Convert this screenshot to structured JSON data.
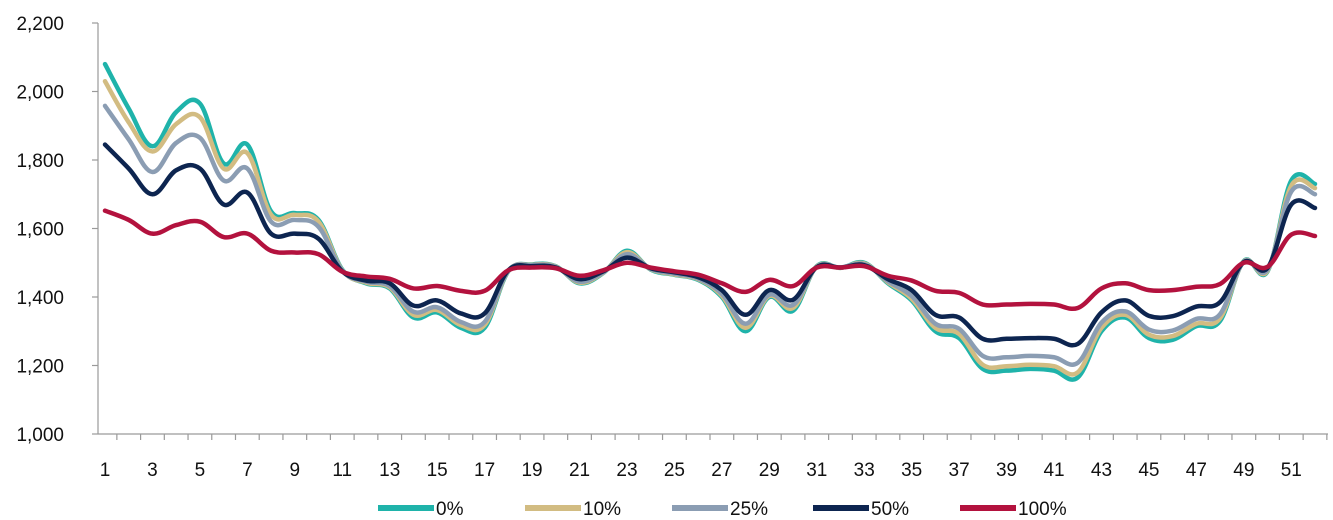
{
  "chart_data": {
    "type": "line",
    "x": [
      1,
      2,
      3,
      4,
      5,
      6,
      7,
      8,
      9,
      10,
      11,
      12,
      13,
      14,
      15,
      16,
      17,
      18,
      19,
      20,
      21,
      22,
      23,
      24,
      25,
      26,
      27,
      28,
      29,
      30,
      31,
      32,
      33,
      34,
      35,
      36,
      37,
      38,
      39,
      40,
      41,
      42,
      43,
      44,
      45,
      46,
      47,
      48,
      49,
      50,
      51,
      52
    ],
    "x_tick_labels": [
      "1",
      "3",
      "5",
      "7",
      "9",
      "11",
      "13",
      "15",
      "17",
      "19",
      "21",
      "23",
      "25",
      "27",
      "29",
      "31",
      "33",
      "35",
      "37",
      "39",
      "41",
      "43",
      "45",
      "47",
      "49",
      "51"
    ],
    "y_tick_labels": [
      "1,000",
      "1,200",
      "1,400",
      "1,600",
      "1,800",
      "2,000",
      "2,200"
    ],
    "ylim": [
      1000,
      2200
    ],
    "grid": false,
    "legend_position": "bottom",
    "series": [
      {
        "name": "0%",
        "color": "#1fb3aa",
        "values": [
          2080,
          1950,
          1840,
          1940,
          1965,
          1790,
          1845,
          1650,
          1645,
          1625,
          1480,
          1440,
          1425,
          1340,
          1355,
          1310,
          1310,
          1475,
          1495,
          1490,
          1440,
          1470,
          1535,
          1480,
          1465,
          1450,
          1400,
          1300,
          1400,
          1360,
          1490,
          1485,
          1500,
          1440,
          1390,
          1300,
          1280,
          1190,
          1185,
          1190,
          1185,
          1165,
          1300,
          1340,
          1280,
          1275,
          1315,
          1330,
          1505,
          1475,
          1740,
          1730
        ]
      },
      {
        "name": "10%",
        "color": "#d2bc82",
        "values": [
          2030,
          1910,
          1825,
          1905,
          1925,
          1775,
          1820,
          1640,
          1640,
          1620,
          1478,
          1442,
          1428,
          1348,
          1362,
          1318,
          1318,
          1476,
          1494,
          1489,
          1442,
          1471,
          1531,
          1481,
          1466,
          1452,
          1404,
          1310,
          1403,
          1368,
          1489,
          1485,
          1498,
          1443,
          1395,
          1310,
          1292,
          1202,
          1198,
          1202,
          1198,
          1180,
          1310,
          1348,
          1290,
          1286,
          1322,
          1338,
          1504,
          1477,
          1725,
          1718
        ]
      },
      {
        "name": "25%",
        "color": "#8b9db3",
        "values": [
          1958,
          1860,
          1765,
          1850,
          1865,
          1740,
          1775,
          1620,
          1625,
          1605,
          1477,
          1445,
          1432,
          1357,
          1370,
          1327,
          1327,
          1477,
          1493,
          1488,
          1445,
          1472,
          1525,
          1482,
          1468,
          1454,
          1409,
          1322,
          1407,
          1377,
          1488,
          1486,
          1496,
          1446,
          1403,
          1322,
          1307,
          1228,
          1224,
          1228,
          1224,
          1208,
          1325,
          1358,
          1305,
          1302,
          1336,
          1350,
          1503,
          1480,
          1708,
          1700
        ]
      },
      {
        "name": "50%",
        "color": "#0d2550",
        "values": [
          1845,
          1775,
          1700,
          1770,
          1775,
          1670,
          1705,
          1585,
          1585,
          1570,
          1475,
          1448,
          1440,
          1375,
          1390,
          1352,
          1352,
          1478,
          1490,
          1486,
          1452,
          1475,
          1515,
          1484,
          1472,
          1458,
          1420,
          1348,
          1420,
          1392,
          1487,
          1486,
          1493,
          1452,
          1420,
          1348,
          1340,
          1278,
          1278,
          1280,
          1278,
          1263,
          1355,
          1390,
          1345,
          1344,
          1372,
          1385,
          1502,
          1485,
          1670,
          1660
        ]
      },
      {
        "name": "100%",
        "color": "#b3123e",
        "values": [
          1652,
          1625,
          1585,
          1610,
          1620,
          1575,
          1585,
          1535,
          1530,
          1525,
          1474,
          1460,
          1453,
          1425,
          1432,
          1418,
          1418,
          1478,
          1486,
          1484,
          1462,
          1478,
          1500,
          1486,
          1475,
          1465,
          1440,
          1415,
          1450,
          1432,
          1486,
          1486,
          1490,
          1462,
          1448,
          1418,
          1412,
          1378,
          1378,
          1380,
          1378,
          1368,
          1425,
          1440,
          1420,
          1420,
          1430,
          1438,
          1500,
          1488,
          1582,
          1578
        ]
      }
    ]
  }
}
